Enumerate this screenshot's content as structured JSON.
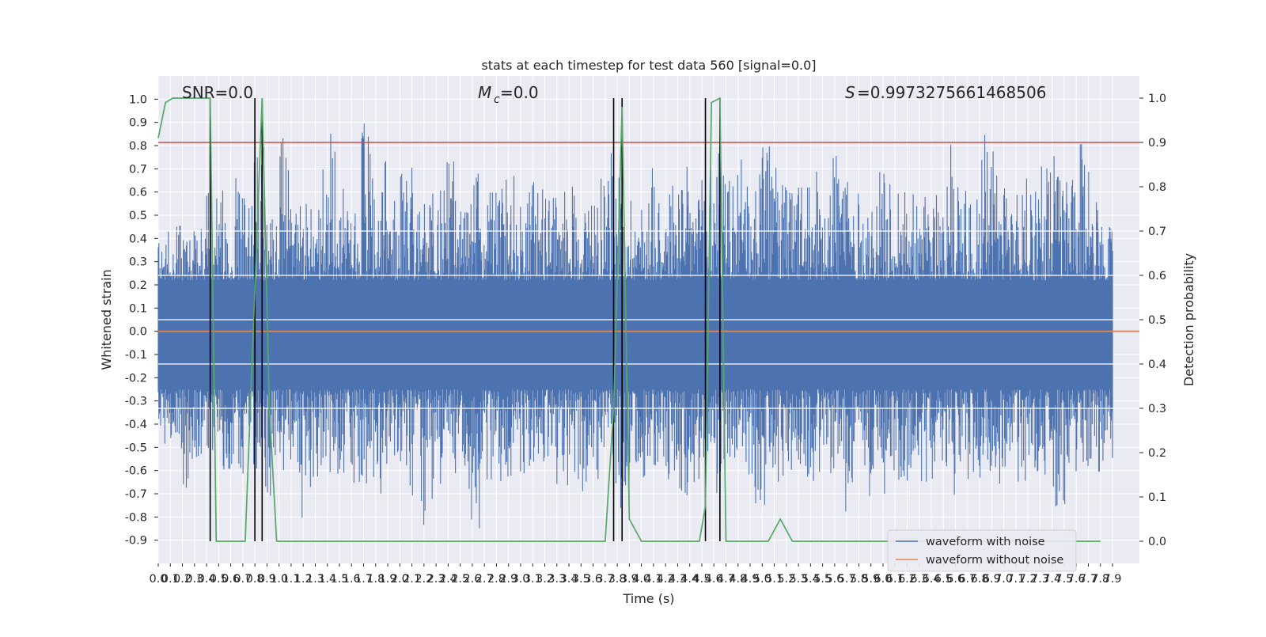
{
  "chart_data": {
    "type": "line",
    "title": "stats at each timestep for test data 560 [signal=0.0]",
    "xlabel": "Time (s)",
    "ylabel": "Whitened strain",
    "y2label": "Detection probability",
    "xlim": [
      0.0,
      7.9
    ],
    "ylim": [
      -1.0,
      1.1
    ],
    "y2lim": [
      -0.05,
      1.05
    ],
    "x_ticks": [
      0.0,
      0.1,
      0.2,
      0.3,
      0.4,
      0.5,
      0.6,
      0.7,
      0.8,
      0.9,
      1.0,
      1.1,
      1.2,
      1.3,
      1.4,
      1.5,
      1.6,
      1.7,
      1.8,
      1.9,
      2.0,
      2.1,
      2.2,
      2.3,
      2.4,
      2.5,
      2.6,
      2.7,
      2.8,
      2.9,
      3.0,
      3.1,
      3.2,
      3.3,
      3.4,
      3.5,
      3.6,
      3.7,
      3.8,
      3.9,
      4.0,
      4.1,
      4.2,
      4.3,
      4.4,
      4.5,
      4.6,
      4.7,
      4.8,
      4.9,
      5.0,
      5.1,
      5.2,
      5.3,
      5.4,
      5.5,
      5.6,
      5.7,
      5.8,
      5.9,
      6.0,
      6.1,
      6.2,
      6.3,
      6.4,
      6.5,
      6.6,
      6.7,
      6.8,
      6.9,
      7.0,
      7.1,
      7.2,
      7.3,
      7.4,
      7.5,
      7.6,
      7.7,
      7.8,
      7.9
    ],
    "y_ticks": [
      -0.9,
      -0.8,
      -0.7,
      -0.6,
      -0.5,
      -0.4,
      -0.3,
      -0.2,
      -0.1,
      0.0,
      0.1,
      0.2,
      0.3,
      0.4,
      0.5,
      0.6,
      0.7,
      0.8,
      0.9,
      1.0
    ],
    "y2_ticks": [
      0.0,
      0.1,
      0.2,
      0.3,
      0.4,
      0.5,
      0.6,
      0.7,
      0.8,
      0.9,
      1.0
    ],
    "annotations": {
      "snr": "SNR=0.0",
      "mc": "=0.0",
      "s": "=0.9973275661468506"
    },
    "threshold": 0.9,
    "detection_markers": [
      0.43,
      0.8,
      0.86,
      3.77,
      3.84,
      4.53,
      4.65
    ],
    "series": [
      {
        "name": "waveform with noise",
        "color": "#4c72b0",
        "envelope_top": [
          0.45,
          0.47,
          0.46,
          0.45,
          0.6,
          0.65,
          0.74,
          0.58,
          0.86,
          0.52,
          0.85,
          0.55,
          0.55,
          0.7,
          0.87,
          0.62,
          0.56,
          0.92,
          0.6,
          0.8,
          0.72,
          0.77,
          0.55,
          0.66,
          0.8,
          0.6,
          0.68,
          0.66,
          0.63,
          0.75,
          0.56,
          0.7,
          0.62,
          0.58,
          0.65,
          0.55,
          0.68,
          0.77,
          0.7,
          0.63,
          0.55,
          0.78,
          0.62,
          0.7,
          0.71,
          0.66,
          0.81,
          0.72,
          0.75,
          0.63,
          0.92,
          0.82,
          0.64,
          0.67,
          0.62,
          0.74,
          0.86,
          0.83,
          0.6,
          0.55,
          0.69,
          0.65,
          0.68,
          0.66,
          0.58,
          0.61,
          0.82,
          0.75,
          0.6,
          0.93,
          0.7,
          0.64,
          0.67,
          0.72,
          0.75,
          0.8,
          0.66,
          0.81,
          0.66,
          0.45
        ],
        "envelope_bottom": [
          -0.5,
          -0.55,
          -0.68,
          -0.57,
          -0.55,
          -0.6,
          -0.66,
          -0.65,
          -0.62,
          -0.73,
          -0.6,
          -0.63,
          -0.87,
          -0.65,
          -0.66,
          -0.63,
          -0.69,
          -0.68,
          -0.7,
          -0.65,
          -0.61,
          -0.72,
          -0.85,
          -0.67,
          -0.63,
          -0.6,
          -0.88,
          -0.64,
          -0.65,
          -0.7,
          -0.72,
          -0.62,
          -0.63,
          -0.66,
          -0.68,
          -0.69,
          -0.65,
          -0.62,
          -0.81,
          -0.76,
          -0.68,
          -0.64,
          -0.66,
          -0.7,
          -0.73,
          -0.65,
          -0.72,
          -0.61,
          -0.6,
          -0.63,
          -0.75,
          -0.65,
          -0.7,
          -0.6,
          -0.66,
          -0.61,
          -0.63,
          -0.78,
          -0.69,
          -0.72,
          -0.7,
          -0.6,
          -0.65,
          -0.68,
          -0.66,
          -0.62,
          -0.72,
          -0.64,
          -0.7,
          -0.63,
          -0.66,
          -0.6,
          -0.7,
          -0.62,
          -0.64,
          -0.79,
          -0.68,
          -0.6,
          -0.62,
          -0.56
        ]
      },
      {
        "name": "waveform without noise",
        "color": "#dd8452",
        "value": 0.0
      },
      {
        "name": "detection probability",
        "color": "#55a868",
        "axis": "right",
        "x": [
          0.0,
          0.06,
          0.12,
          0.2,
          0.3,
          0.38,
          0.43,
          0.48,
          0.55,
          0.65,
          0.72,
          0.79,
          0.86,
          0.92,
          0.98,
          1.1,
          2.0,
          3.0,
          3.7,
          3.77,
          3.84,
          3.9,
          4.0,
          4.2,
          4.4,
          4.48,
          4.53,
          4.58,
          4.65,
          4.7,
          4.8,
          4.9,
          5.05,
          5.15,
          5.25,
          5.4,
          6.0,
          7.0,
          7.8
        ],
        "y": [
          0.91,
          0.99,
          1.0,
          1.0,
          1.0,
          1.0,
          1.0,
          0.0,
          0.0,
          0.0,
          0.0,
          0.5,
          1.0,
          0.3,
          0.0,
          0.0,
          0.0,
          0.0,
          0.0,
          0.3,
          0.98,
          0.05,
          0.0,
          0.0,
          0.0,
          0.0,
          0.08,
          0.99,
          1.0,
          0.0,
          0.0,
          0.0,
          0.0,
          0.05,
          0.0,
          0.0,
          0.0,
          0.0,
          0.0
        ]
      }
    ],
    "legend": {
      "placement": "lower-right",
      "entries": [
        "waveform with noise",
        "waveform without noise"
      ]
    },
    "grid": true,
    "colors": {
      "background": "#eaeaf2",
      "grid": "#ffffff",
      "threshold": "#c44e52",
      "markers": "#000000"
    }
  }
}
